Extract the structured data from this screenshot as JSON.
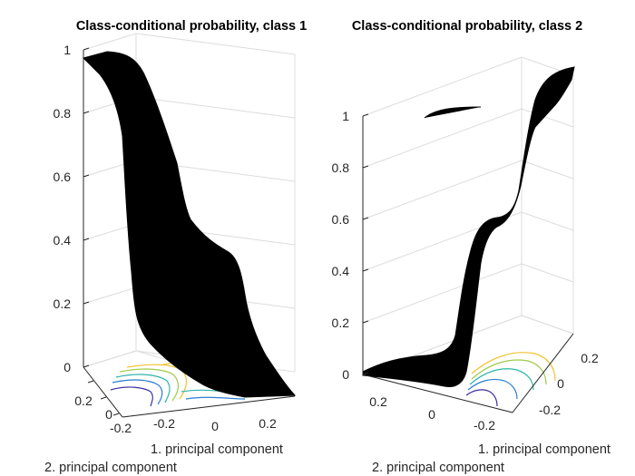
{
  "chart_data": [
    {
      "type": "surface",
      "title": "Class-conditional probability, class 1",
      "xlabel": "1. principal component",
      "ylabel": "2. principal component",
      "x_ticks": [
        "-0.2",
        "0",
        "0.2"
      ],
      "y_ticks": [
        "0.2",
        "0",
        "-0.2"
      ],
      "z_ticks": [
        "0",
        "0.2",
        "0.4",
        "0.6",
        "0.8",
        "1"
      ],
      "zlim": [
        0,
        1
      ],
      "surface_color": "#000000",
      "contour_colors": [
        "#f2c330",
        "#9fcc4a",
        "#2eb5a8",
        "#2a7fd4",
        "#3b2fa0"
      ]
    },
    {
      "type": "surface",
      "title": "Class-conditional probability, class 2",
      "xlabel": "1. principal component",
      "ylabel": "2. principal component",
      "x_ticks": [
        "0.2",
        "0",
        "-0.2"
      ],
      "y_ticks": [
        "0.2",
        "0",
        "-0.2"
      ],
      "z_ticks": [
        "0",
        "0.2",
        "0.4",
        "0.6",
        "0.8",
        "1"
      ],
      "zlim": [
        0,
        1
      ],
      "surface_color": "#000000",
      "contour_colors": [
        "#f2c330",
        "#9fcc4a",
        "#2eb5a8",
        "#2a7fd4",
        "#3b2fa0"
      ]
    }
  ]
}
